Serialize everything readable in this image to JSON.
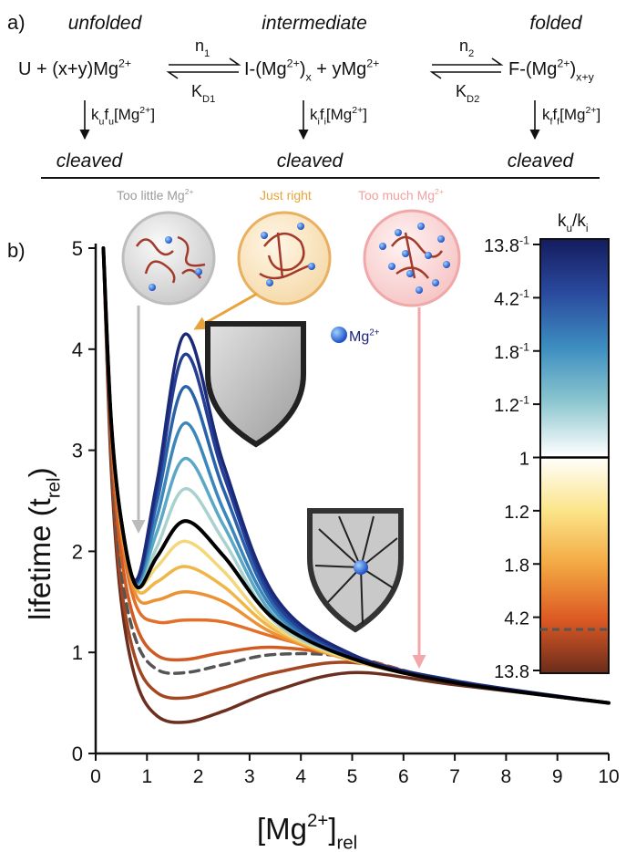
{
  "panel_labels": [
    "a)",
    "b)"
  ],
  "scheme": {
    "states": [
      "unfolded",
      "intermediate",
      "folded"
    ],
    "species": [
      [
        {
          "t": "U + (x+y)Mg"
        },
        {
          "sup": "2+"
        }
      ],
      [
        {
          "t": "I-(Mg"
        },
        {
          "sup": "2+"
        },
        {
          "t": ")"
        },
        {
          "sub": "x"
        },
        {
          "t": " + yMg"
        },
        {
          "sup": "2+"
        }
      ],
      [
        {
          "t": "F-(Mg"
        },
        {
          "sup": "2+"
        },
        {
          "t": ")"
        },
        {
          "sub": "x+y"
        }
      ]
    ],
    "forward": [
      [
        {
          "t": "n"
        },
        {
          "sub": "1"
        }
      ],
      [
        {
          "t": "n"
        },
        {
          "sub": "2"
        }
      ]
    ],
    "backward": [
      [
        {
          "t": "K"
        },
        {
          "sub": "D1"
        }
      ],
      [
        {
          "t": "K"
        },
        {
          "sub": "D2"
        }
      ]
    ],
    "rates": [
      [
        {
          "t": "k"
        },
        {
          "sub": "u"
        },
        {
          "t": "f"
        },
        {
          "sub": "u"
        },
        {
          "t": "[Mg"
        },
        {
          "sup": "2+"
        },
        {
          "t": "]"
        }
      ],
      [
        {
          "t": "k"
        },
        {
          "sub": "i"
        },
        {
          "t": "f"
        },
        {
          "sub": "i"
        },
        {
          "t": "[Mg"
        },
        {
          "sup": "2+"
        },
        {
          "t": "]"
        }
      ],
      [
        {
          "t": "k"
        },
        {
          "sub": "f"
        },
        {
          "t": "f"
        },
        {
          "sub": "f"
        },
        {
          "t": "[Mg"
        },
        {
          "sup": "2+"
        },
        {
          "t": "]"
        }
      ]
    ],
    "product": [
      "cleaved",
      "cleaved",
      "cleaved"
    ]
  },
  "chart_data": {
    "type": "line",
    "annotations": [
      {
        "text": [
          {
            "t": "Too little Mg"
          },
          {
            "sup": "2+"
          }
        ],
        "color": "#9a9a9a"
      },
      {
        "text": [
          {
            "t": "Just right"
          }
        ],
        "color": "#e8a33a"
      },
      {
        "text": [
          {
            "t": "Too much Mg"
          },
          {
            "sup": "2+"
          }
        ],
        "color": "#f0a0a0"
      },
      {
        "text": [
          {
            "t": "Mg"
          },
          {
            "sup": "2+"
          }
        ],
        "color": "#1a237e"
      }
    ],
    "xlabel": [
      {
        "t": "[Mg"
      },
      {
        "sup": "2+"
      },
      {
        "t": "]"
      },
      {
        "sub": "rel"
      }
    ],
    "ylabel": [
      {
        "t": "lifetime (t"
      },
      {
        "sub": "rel"
      },
      {
        "t": ")"
      }
    ],
    "xlim": [
      0,
      10
    ],
    "ylim": [
      0,
      5
    ],
    "xticks": [
      0,
      1,
      2,
      3,
      4,
      5,
      6,
      7,
      8,
      9,
      10
    ],
    "yticks": [
      0,
      1,
      2,
      3,
      4,
      5
    ],
    "x": [
      0.15,
      0.3,
      0.5,
      0.8,
      1.2,
      1.75,
      2.5,
      3.5,
      5,
      7,
      10
    ],
    "series": [
      {
        "color": "#6c2e1f",
        "values": [
          5,
          2.85,
          1.5,
          0.7,
          0.37,
          0.31,
          0.42,
          0.62,
          0.8,
          0.68,
          0.5
        ]
      },
      {
        "color": "#a34722",
        "values": [
          5,
          2.95,
          1.65,
          0.9,
          0.6,
          0.55,
          0.65,
          0.8,
          0.9,
          0.7,
          0.5
        ]
      },
      {
        "color": "#555555",
        "dashed": true,
        "values": [
          5,
          3.05,
          1.8,
          1.1,
          0.83,
          0.8,
          0.88,
          0.98,
          0.95,
          0.7,
          0.5
        ]
      },
      {
        "color": "#cf5a22",
        "values": [
          5,
          3.15,
          1.95,
          1.25,
          0.97,
          0.93,
          1.0,
          1.05,
          0.95,
          0.7,
          0.5
        ]
      },
      {
        "color": "#e3702a",
        "values": [
          5,
          3.25,
          2.15,
          1.45,
          1.3,
          1.32,
          1.3,
          1.15,
          0.95,
          0.7,
          0.5
        ]
      },
      {
        "color": "#ec9234",
        "values": [
          5,
          3.28,
          2.22,
          1.55,
          1.52,
          1.6,
          1.5,
          1.18,
          0.92,
          0.7,
          0.5
        ]
      },
      {
        "color": "#f1b648",
        "values": [
          5,
          3.3,
          2.27,
          1.62,
          1.7,
          1.85,
          1.65,
          1.22,
          0.92,
          0.7,
          0.5
        ]
      },
      {
        "color": "#f3d77a",
        "values": [
          5,
          3.3,
          2.28,
          1.66,
          1.85,
          2.1,
          1.8,
          1.25,
          0.93,
          0.7,
          0.5
        ]
      },
      {
        "color": "#a9d2cf",
        "values": [
          5,
          3.3,
          2.3,
          1.67,
          2.05,
          2.62,
          2.1,
          1.3,
          0.94,
          0.7,
          0.5
        ]
      },
      {
        "color": "#5aa8c6",
        "values": [
          5,
          3.3,
          2.3,
          1.68,
          2.2,
          2.92,
          2.25,
          1.35,
          0.95,
          0.7,
          0.5
        ]
      },
      {
        "color": "#3b86bb",
        "values": [
          5,
          3.3,
          2.3,
          1.68,
          2.35,
          3.27,
          2.4,
          1.4,
          0.95,
          0.7,
          0.5
        ]
      },
      {
        "color": "#2a62aa",
        "values": [
          5,
          3.3,
          2.3,
          1.7,
          2.5,
          3.63,
          2.6,
          1.45,
          0.96,
          0.71,
          0.5
        ]
      },
      {
        "color": "#243d95",
        "values": [
          5,
          3.3,
          2.3,
          1.7,
          2.62,
          3.95,
          2.75,
          1.5,
          0.97,
          0.71,
          0.5
        ]
      },
      {
        "color": "#1b2a78",
        "values": [
          5,
          3.3,
          2.3,
          1.72,
          2.7,
          4.15,
          2.85,
          1.55,
          0.98,
          0.72,
          0.5
        ]
      },
      {
        "color": "#000000",
        "values": [
          5,
          3.3,
          2.3,
          1.65,
          1.95,
          2.3,
          1.95,
          1.32,
          0.94,
          0.7,
          0.5
        ]
      }
    ],
    "colorbar": {
      "title": [
        {
          "t": "k"
        },
        {
          "sub": "u"
        },
        {
          "t": "/k"
        },
        {
          "sub": "i"
        }
      ],
      "labels": [
        [
          {
            "t": "13.8"
          },
          {
            "sup": "-1"
          }
        ],
        [
          {
            "t": "4.2"
          },
          {
            "sup": "-1"
          }
        ],
        [
          {
            "t": "1.8"
          },
          {
            "sup": "-1"
          }
        ],
        [
          {
            "t": "1.2"
          },
          {
            "sup": "-1"
          }
        ],
        [
          {
            "t": "1"
          }
        ],
        [
          {
            "t": "1.2"
          }
        ],
        [
          {
            "t": "1.8"
          }
        ],
        [
          {
            "t": "4.2"
          }
        ],
        [
          {
            "t": "13.8"
          }
        ]
      ],
      "colors": [
        "#141c5e",
        "#2a4a9e",
        "#3d8ec0",
        "#8cc6cf",
        "#ffffff",
        "#fbe58a",
        "#f3a842",
        "#dd5a24",
        "#6a2c1c"
      ]
    }
  }
}
